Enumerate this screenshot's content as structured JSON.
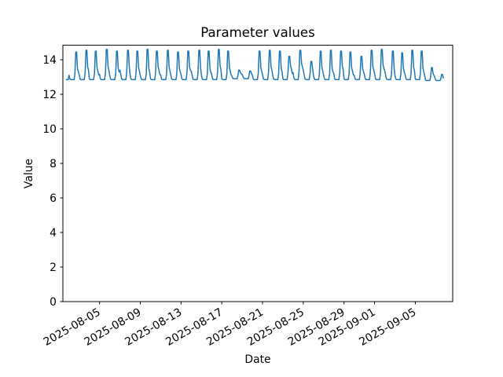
{
  "chart_data": {
    "type": "line",
    "title": "Parameter values",
    "xlabel": "Date",
    "ylabel": "Value",
    "line_color": "#1f77b4",
    "axis_color": "#000000",
    "background_color": "#ffffff",
    "grid": false,
    "legend": null,
    "ylim": [
      0,
      14.84
    ],
    "y_ticks": [
      0,
      2,
      4,
      6,
      8,
      10,
      12,
      14
    ],
    "x_epoch_date": "2025-08-01",
    "xlim_days": [
      0.4,
      38.67
    ],
    "x_tick_rotation_deg": 30,
    "x_ticks": [
      {
        "label": "2025-08-05",
        "day": 4
      },
      {
        "label": "2025-08-09",
        "day": 8
      },
      {
        "label": "2025-08-13",
        "day": 12
      },
      {
        "label": "2025-08-17",
        "day": 16
      },
      {
        "label": "2025-08-21",
        "day": 20
      },
      {
        "label": "2025-08-25",
        "day": 24
      },
      {
        "label": "2025-08-29",
        "day": 28
      },
      {
        "label": "2025-09-01",
        "day": 31
      },
      {
        "label": "2025-09-05",
        "day": 35
      }
    ],
    "series": {
      "name": "Parameter values",
      "sampling_hours": 2,
      "start_day_offset": 0.6667,
      "end_day_offset": 37.8333,
      "peak_hour_weights": [
        0,
        0,
        0,
        0,
        0,
        0,
        0,
        0.08,
        1,
        1,
        0.15,
        0
      ],
      "shoulder_hour_weights": [
        0.55,
        0.1,
        0,
        0,
        0,
        0,
        0,
        0.45,
        0,
        0,
        0.9,
        1
      ],
      "day_fields": [
        "date",
        "base",
        "peak",
        "shoulder",
        "shift_hours"
      ],
      "days": [
        [
          "2025-08-01",
          12.85,
          12.85,
          12.85,
          0
        ],
        [
          "2025-08-02",
          12.85,
          14.45,
          13.3,
          0
        ],
        [
          "2025-08-03",
          12.85,
          14.55,
          13.4,
          0
        ],
        [
          "2025-08-04",
          12.85,
          14.5,
          13.35,
          -2
        ],
        [
          "2025-08-05",
          12.85,
          14.6,
          13.4,
          0
        ],
        [
          "2025-08-06",
          12.85,
          14.5,
          13.3,
          0
        ],
        [
          "2025-08-07",
          12.85,
          14.55,
          13.4,
          2
        ],
        [
          "2025-08-08",
          12.85,
          14.5,
          13.35,
          0
        ],
        [
          "2025-08-09",
          12.85,
          14.6,
          13.3,
          0
        ],
        [
          "2025-08-10",
          12.85,
          14.5,
          13.4,
          -2
        ],
        [
          "2025-08-11",
          12.85,
          14.55,
          13.35,
          0
        ],
        [
          "2025-08-12",
          12.85,
          14.45,
          13.3,
          0
        ],
        [
          "2025-08-13",
          12.85,
          14.5,
          13.4,
          0
        ],
        [
          "2025-08-14",
          12.85,
          14.55,
          13.35,
          2
        ],
        [
          "2025-08-15",
          12.85,
          14.5,
          13.3,
          0
        ],
        [
          "2025-08-16",
          12.85,
          14.6,
          13.45,
          0
        ],
        [
          "2025-08-17",
          12.85,
          14.5,
          13.35,
          -2
        ],
        [
          "2025-08-18",
          12.9,
          13.4,
          13.2,
          0
        ],
        [
          "2025-08-19",
          12.9,
          13.35,
          13.15,
          2
        ],
        [
          "2025-08-20",
          12.85,
          14.5,
          13.35,
          0
        ],
        [
          "2025-08-21",
          12.85,
          14.55,
          13.4,
          0
        ],
        [
          "2025-08-22",
          12.85,
          14.5,
          13.3,
          0
        ],
        [
          "2025-08-23",
          12.85,
          14.2,
          13.5,
          -2
        ],
        [
          "2025-08-24",
          12.85,
          14.55,
          13.6,
          0
        ],
        [
          "2025-08-25",
          12.85,
          13.9,
          13.4,
          2
        ],
        [
          "2025-08-26",
          12.85,
          14.5,
          13.35,
          0
        ],
        [
          "2025-08-27",
          12.85,
          14.55,
          13.3,
          0
        ],
        [
          "2025-08-28",
          12.85,
          14.5,
          13.45,
          0
        ],
        [
          "2025-08-29",
          12.85,
          14.45,
          13.35,
          -2
        ],
        [
          "2025-08-30",
          12.85,
          14.2,
          13.3,
          0
        ],
        [
          "2025-08-31",
          12.85,
          14.55,
          13.4,
          0
        ],
        [
          "2025-09-01",
          12.85,
          14.6,
          13.5,
          0
        ],
        [
          "2025-09-02",
          12.85,
          14.5,
          13.35,
          2
        ],
        [
          "2025-09-03",
          12.85,
          14.4,
          13.3,
          0
        ],
        [
          "2025-09-04",
          12.85,
          14.55,
          13.35,
          0
        ],
        [
          "2025-09-05",
          12.85,
          14.5,
          13.3,
          -2
        ],
        [
          "2025-09-06",
          12.8,
          13.55,
          13.1,
          -2
        ],
        [
          "2025-09-07",
          12.8,
          13.15,
          12.9,
          -2
        ]
      ]
    }
  }
}
